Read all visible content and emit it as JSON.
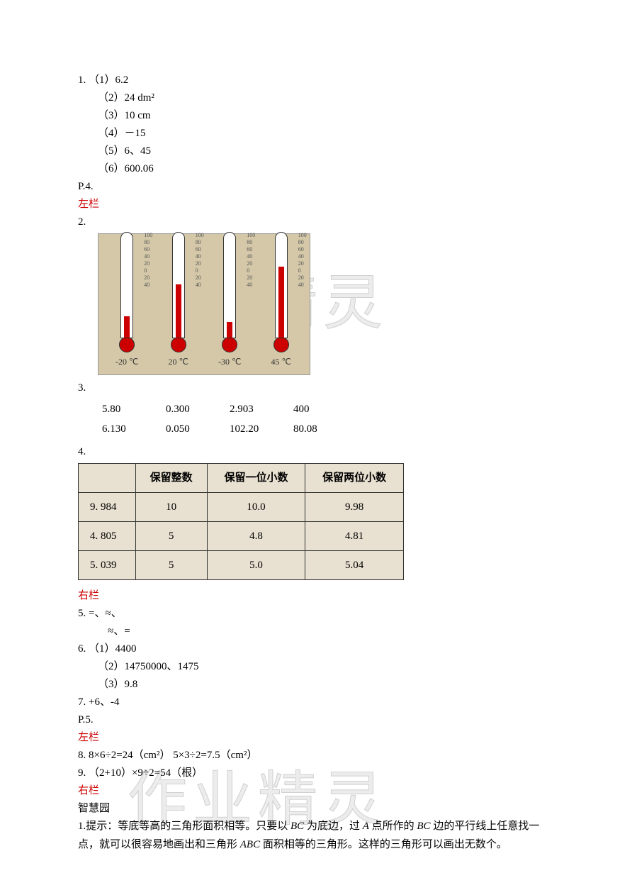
{
  "watermark_text": "作业精灵",
  "q1": {
    "num": "1.",
    "items": [
      "（1）6.2",
      "（2）24 dm²",
      "（3）10 cm",
      "（4）－15",
      "（5）6、45",
      "（6）600.06"
    ]
  },
  "p4": "P.4.",
  "left_col": "左栏",
  "right_col": "右栏",
  "q2": {
    "num": "2.",
    "thermometers": [
      {
        "label": "-20 ℃",
        "fill_height": 30
      },
      {
        "label": "20 ℃",
        "fill_height": 75
      },
      {
        "label": "-30 ℃",
        "fill_height": 22
      },
      {
        "label": "45 ℃",
        "fill_height": 100
      }
    ],
    "ticks": [
      "100",
      "80",
      "60",
      "40",
      "20",
      "0",
      "20",
      "40"
    ],
    "bg_color": "#d4c8a8"
  },
  "q3": {
    "num": "3.",
    "rows": [
      [
        "5.80",
        "0.300",
        "2.903",
        "400"
      ],
      [
        "6.130",
        "0.050",
        "102.20",
        "80.08"
      ]
    ],
    "text_color": "#000000",
    "underline_color": "#d04040"
  },
  "q4": {
    "num": "4.",
    "headers": [
      "",
      "保留整数",
      "保留一位小数",
      "保留两位小数"
    ],
    "rows": [
      [
        "9. 984",
        "10",
        "10.0",
        "9.98"
      ],
      [
        "4. 805",
        "5",
        "4.8",
        "4.81"
      ],
      [
        "5. 039",
        "5",
        "5.0",
        "5.04"
      ]
    ],
    "bg_color": "#e8e0d0",
    "border_color": "#333333"
  },
  "q5": {
    "line1": "5.    =、≈、",
    "line2": "≈、="
  },
  "q6": {
    "num": "6.",
    "items": [
      "（1）4400",
      "（2）14750000、1475",
      "（3）9.8"
    ]
  },
  "q7": "7.    +6、-4",
  "p5": "P.5.",
  "q8": "8.   8×6÷2=24（cm²）       5×3÷2=7.5（cm²）",
  "q9": "9. （2+10）×9÷2=54（根）",
  "wisdom": "智慧园",
  "tip": {
    "prefix": "1.提示：等底等高的三角形面积相等。只要以 ",
    "bc1": "BC",
    "mid1": " 为底边，过 ",
    "a": "A",
    "mid2": " 点所作的 ",
    "bc2": "BC",
    "mid3": " 边的平行线上任意找一点，就可以很容易地画出和三角形 ",
    "abc": "ABC",
    "mid4": " 面积相等的三角形。这样的三角形可以画出无数个。"
  }
}
